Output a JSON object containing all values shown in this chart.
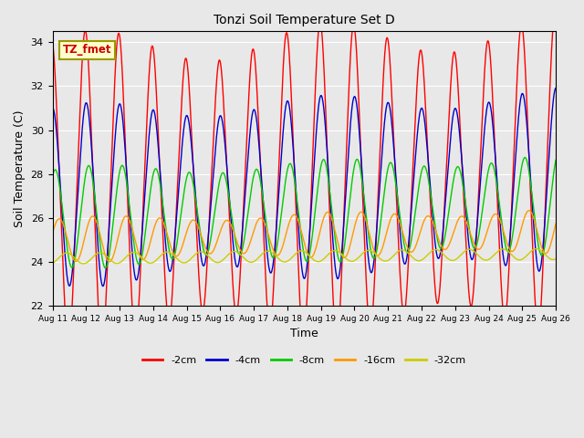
{
  "title": "Tonzi Soil Temperature Set D",
  "xlabel": "Time",
  "ylabel": "Soil Temperature (C)",
  "ylim": [
    22,
    34.5
  ],
  "annotation": "TZ_fmet",
  "legend_labels": [
    "-2cm",
    "-4cm",
    "-8cm",
    "-16cm",
    "-32cm"
  ],
  "line_colors": [
    "#ff0000",
    "#0000cc",
    "#00cc00",
    "#ff9900",
    "#cccc00"
  ],
  "line_widths": [
    1.0,
    1.0,
    1.0,
    1.0,
    1.0
  ],
  "tick_labels": [
    "Aug 11",
    "Aug 12",
    "Aug 13",
    "Aug 14",
    "Aug 15",
    "Aug 16",
    "Aug 17",
    "Aug 18",
    "Aug 19",
    "Aug 20",
    "Aug 21",
    "Aug 22",
    "Aug 23",
    "Aug 24",
    "Aug 25",
    "Aug 26"
  ],
  "n_days": 15,
  "samples_per_day": 96,
  "background_color": "#e8e8e8",
  "axes_bg_color": "#e8e8e8",
  "grid_color": "#ffffff",
  "fig_width": 6.4,
  "fig_height": 4.8,
  "dpi": 100
}
